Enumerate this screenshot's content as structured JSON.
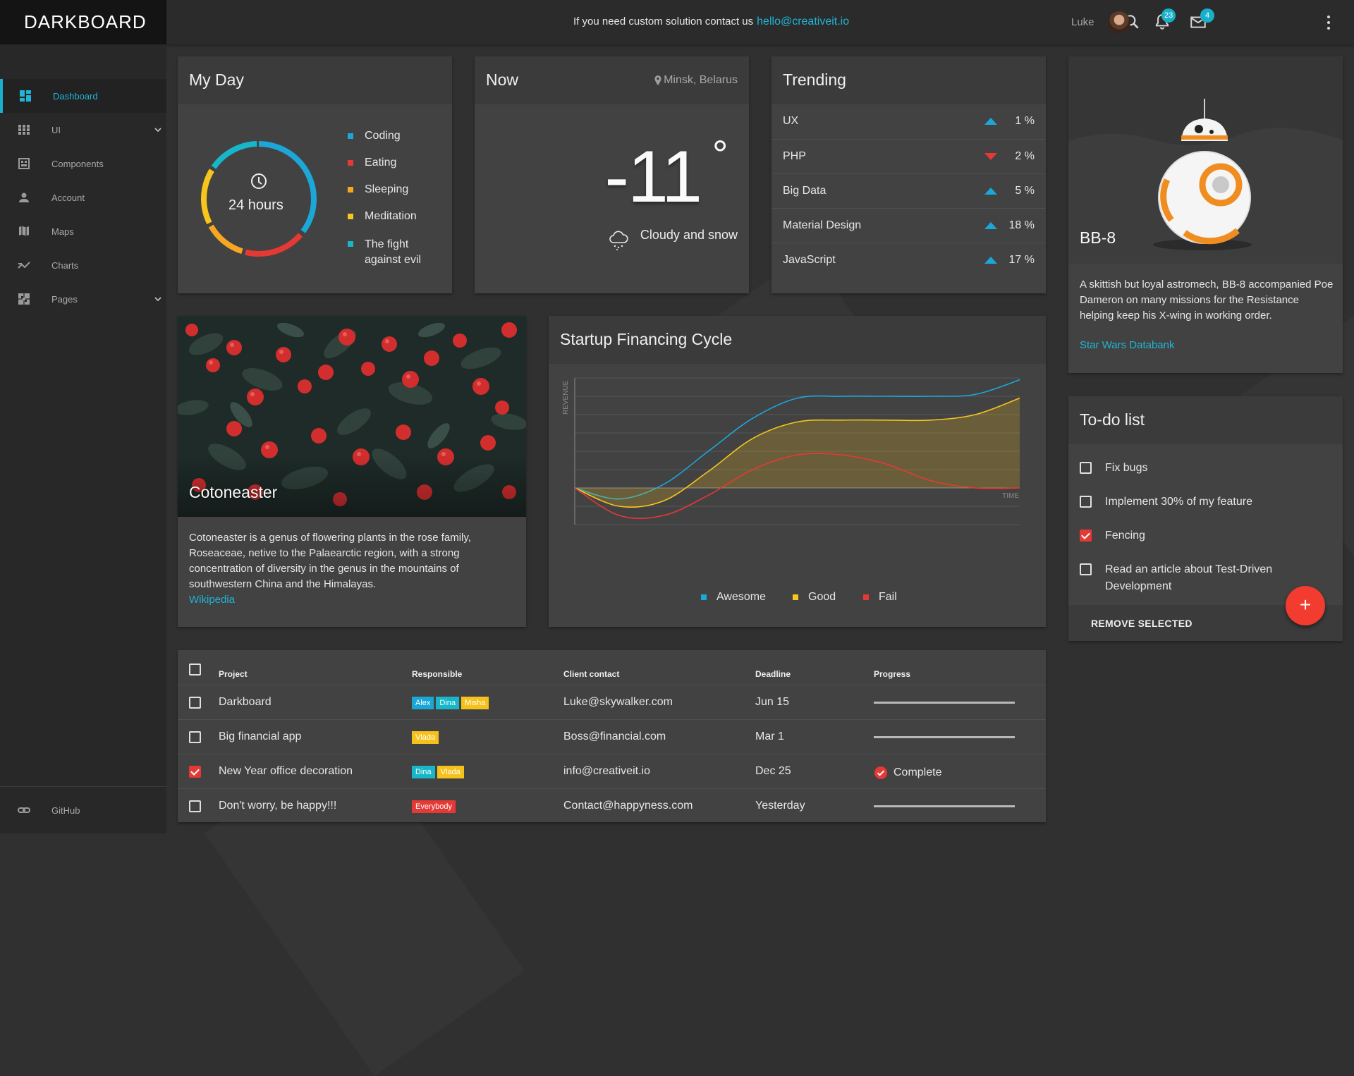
{
  "app": {
    "logo": "DARKBOARD"
  },
  "topbar": {
    "message": "If you need custom solution contact us",
    "email": "hello@creativeit.io",
    "notifications_count": "23",
    "messages_count": "4",
    "user_name": "Luke",
    "icons": [
      "search-icon",
      "bell-icon",
      "mail-icon",
      "avatar",
      "more-vert-icon"
    ]
  },
  "sidebar": {
    "items": [
      {
        "label": "Dashboard",
        "icon": "dashboard-icon",
        "active": true
      },
      {
        "label": "UI",
        "icon": "grid-icon",
        "expandable": true
      },
      {
        "label": "Components",
        "icon": "components-icon"
      },
      {
        "label": "Account",
        "icon": "person-icon"
      },
      {
        "label": "Maps",
        "icon": "map-icon"
      },
      {
        "label": "Charts",
        "icon": "trending-icon"
      },
      {
        "label": "Pages",
        "icon": "pages-icon",
        "expandable": true
      }
    ],
    "footer": {
      "label": "GitHub",
      "icon": "link-icon"
    }
  },
  "my_day": {
    "title": "My Day",
    "center_label": "24 hours",
    "legend": [
      {
        "label": "Coding",
        "color": "#1ba8d8"
      },
      {
        "label": "Eating",
        "color": "#e53935"
      },
      {
        "label": "Sleeping",
        "color": "#f5a623"
      },
      {
        "label": "Meditation",
        "color": "#f8c51c"
      },
      {
        "label": "The fight against evil",
        "line1": "The fight",
        "line2": "against evil",
        "color": "#17b6c9"
      }
    ]
  },
  "now": {
    "title": "Now",
    "location": "Minsk, Belarus",
    "temperature": "-11",
    "degree": "°",
    "condition": "Cloudy and snow"
  },
  "trending": {
    "title": "Trending",
    "rows": [
      {
        "name": "UX",
        "direction": "up",
        "value": "1 %"
      },
      {
        "name": "PHP",
        "direction": "down",
        "value": "2 %"
      },
      {
        "name": "Big Data",
        "direction": "up",
        "value": "5 %"
      },
      {
        "name": "Material Design",
        "direction": "up",
        "value": "18 %"
      },
      {
        "name": "JavaScript",
        "direction": "up",
        "value": "17 %"
      }
    ]
  },
  "bb8": {
    "title": "BB-8",
    "text": "A skittish but loyal astromech, BB-8 accompanied Poe Dameron on many missions for the Resistance helping keep his X-wing in working order.",
    "link": "Star Wars Databank"
  },
  "cotoneaster": {
    "title": "Cotoneaster",
    "text": "Cotoneaster is a genus of flowering plants in the rose family, Roseaceae, netive to the Palaearctic region, with a strong concentration of diversity in the genus in the mountains of southwestern China and the Himalayas.",
    "link": "Wikipedia"
  },
  "financing": {
    "title": "Startup Financing Cycle"
  },
  "chart_data": {
    "type": "line",
    "title": "Startup Financing Cycle",
    "xlabel": "TIME",
    "ylabel": "REVENUE",
    "x": [
      0,
      1,
      2,
      3,
      4,
      5,
      6,
      7,
      8,
      9,
      10
    ],
    "xlim": [
      0,
      10
    ],
    "ylim": [
      -2,
      6
    ],
    "grid": true,
    "legend_position": "bottom",
    "series": [
      {
        "name": "Awesome",
        "color": "#1ba8d8",
        "values": [
          0,
          -0.6,
          0.2,
          2.0,
          3.8,
          4.9,
          5.0,
          5.0,
          5.0,
          5.1,
          5.9
        ]
      },
      {
        "name": "Good",
        "color": "#f8c51c",
        "values": [
          0,
          -1.0,
          -0.7,
          0.9,
          2.7,
          3.6,
          3.7,
          3.7,
          3.7,
          4.0,
          4.9
        ],
        "fill": true
      },
      {
        "name": "Fail",
        "color": "#e53935",
        "values": [
          0,
          -1.5,
          -1.5,
          -0.4,
          1.0,
          1.8,
          1.8,
          1.3,
          0.4,
          0.0,
          0.0
        ]
      }
    ]
  },
  "todo": {
    "title": "To-do list",
    "items": [
      {
        "label": "Fix bugs",
        "checked": false
      },
      {
        "label": "Implement 30% of my feature",
        "checked": false
      },
      {
        "label": "Fencing",
        "checked": true
      },
      {
        "label": "Read an article about Test-Driven Development",
        "line1": "Read an article about Test-Driven",
        "line2": "Development",
        "checked": false
      }
    ],
    "action": "REMOVE SELECTED",
    "fab": "+"
  },
  "projects": {
    "headers": {
      "project": "Project",
      "responsible": "Responsible",
      "contact": "Client contact",
      "deadline": "Deadline",
      "progress": "Progress"
    },
    "rows": [
      {
        "project": "Darkboard",
        "chips": [
          {
            "label": "Alex",
            "color": "#1aa7d6"
          },
          {
            "label": "Dina",
            "color": "#17b6c9"
          },
          {
            "label": "Misha",
            "color": "#f5c21b"
          }
        ],
        "contact": "Luke@skywalker.com",
        "deadline": "Jun 15",
        "progress": 0.0,
        "checked": false
      },
      {
        "project": "Big financial app",
        "chips": [
          {
            "label": "Vlada",
            "color": "#f5c21b"
          }
        ],
        "contact": "Boss@financial.com",
        "deadline": "Mar 1",
        "progress": 0.0,
        "checked": false
      },
      {
        "project": "New Year office decoration",
        "chips": [
          {
            "label": "Dina",
            "color": "#17b6c9"
          },
          {
            "label": "Vlada",
            "color": "#f5c21b"
          }
        ],
        "contact": "info@creativeit.io",
        "deadline": "Dec 25",
        "complete_label": "Complete",
        "checked": true
      },
      {
        "project": "Don't worry, be happy!!!",
        "chips": [
          {
            "label": "Everybody",
            "color": "#e53935"
          }
        ],
        "contact": "Contact@happyness.com",
        "deadline": "Yesterday",
        "progress": 0.0,
        "checked": false
      }
    ]
  }
}
